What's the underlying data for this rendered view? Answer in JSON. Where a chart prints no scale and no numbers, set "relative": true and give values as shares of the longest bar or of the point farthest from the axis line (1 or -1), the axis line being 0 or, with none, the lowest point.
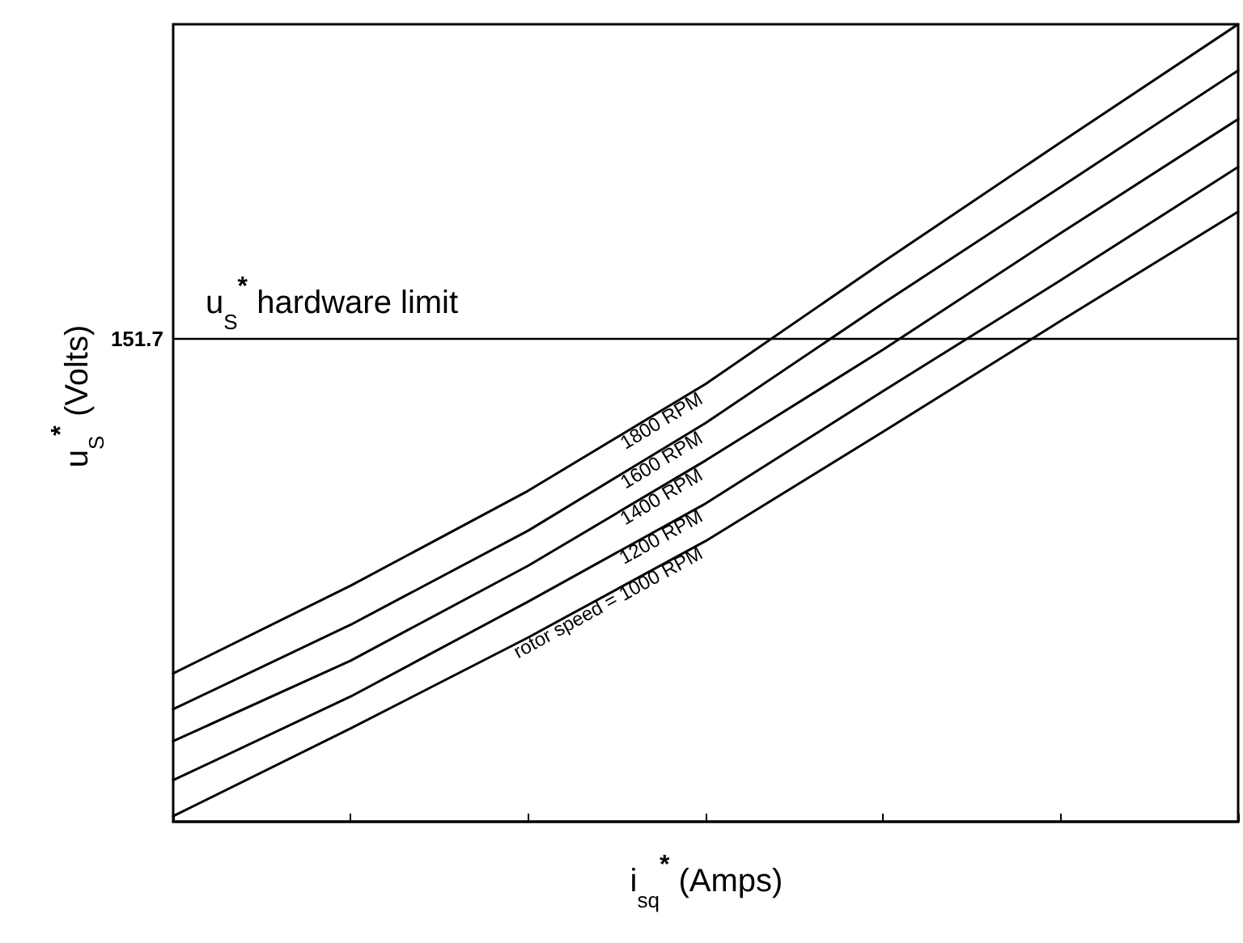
{
  "chart_data": {
    "type": "line",
    "relative": true,
    "xlabel": "i$_{sq}$$^{*}$ (Amps)",
    "ylabel": "u$_{S}$$^{*}$ (Volts)",
    "categories": [
      null,
      null,
      null,
      null,
      null,
      null,
      null
    ],
    "marker": "none",
    "line_style": "solid",
    "grid": false,
    "series": [
      {
        "name": "1800 RPM",
        "color": "#000000",
        "values": [
          0.186,
          0.296,
          0.415,
          0.549,
          0.702,
          0.852,
          1
        ]
      },
      {
        "name": "1600 RPM",
        "color": "#000000",
        "values": [
          0.141,
          0.247,
          0.365,
          0.5,
          0.65,
          0.796,
          0.942
        ]
      },
      {
        "name": "1400 RPM",
        "color": "#000000",
        "values": [
          0.101,
          0.202,
          0.321,
          0.453,
          0.592,
          0.738,
          0.881
        ]
      },
      {
        "name": "1200 RPM",
        "color": "#000000",
        "values": [
          0.052,
          0.157,
          0.276,
          0.399,
          0.54,
          0.679,
          0.821
        ]
      },
      {
        "name": "rotor speed = 1000 RPM",
        "color": "#000000",
        "values": [
          0.007,
          0.117,
          0.231,
          0.352,
          0.489,
          0.628,
          0.765
        ]
      }
    ],
    "ref_lines": [
      {
        "axis": "y",
        "value": 0.605,
        "label": "u$_{S}$$^{*}$ hardware limit",
        "color": "#000000"
      }
    ],
    "annotations": [
      "151.7"
    ]
  }
}
